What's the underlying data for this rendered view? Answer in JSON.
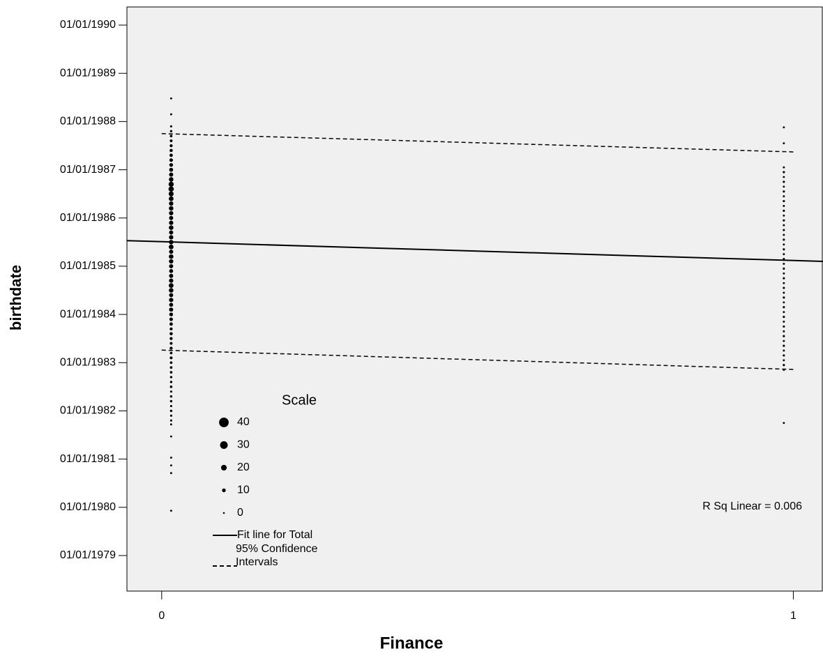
{
  "chart_data": {
    "type": "scatter",
    "x_label": "Finance",
    "y_label": "birthdate",
    "xlim": [
      -0.055,
      1.047
    ],
    "xticks": [
      0,
      1
    ],
    "ylim": [
      1978.263,
      1990.376
    ],
    "yticks": [
      {
        "value": 1990,
        "label": "01/01/1990"
      },
      {
        "value": 1989,
        "label": "01/01/1989"
      },
      {
        "value": 1988,
        "label": "01/01/1988"
      },
      {
        "value": 1987,
        "label": "01/01/1987"
      },
      {
        "value": 1986,
        "label": "01/01/1986"
      },
      {
        "value": 1985,
        "label": "01/01/1985"
      },
      {
        "value": 1984,
        "label": "01/01/1984"
      },
      {
        "value": 1983,
        "label": "01/01/1983"
      },
      {
        "value": 1982,
        "label": "01/01/1982"
      },
      {
        "value": 1981,
        "label": "01/01/1981"
      },
      {
        "value": 1980,
        "label": "01/01/1980"
      },
      {
        "value": 1979,
        "label": "01/01/1979"
      }
    ],
    "color": "#000000",
    "background": "#f0f0f0",
    "series": [
      {
        "x": 0.015,
        "y": [
          1979.93,
          1980.71,
          1980.87,
          1981.03,
          1981.47,
          1981.72,
          1981.8,
          1981.9,
          1982.0,
          1982.1,
          1982.2,
          1982.3,
          1982.4,
          1982.5,
          1982.6,
          1982.7,
          1982.8,
          1982.9,
          1983.0,
          1983.1,
          1983.2,
          1983.3,
          1983.4,
          1983.5,
          1983.6,
          1983.7,
          1983.8,
          1983.9,
          1984.0,
          1984.1,
          1984.2,
          1984.3,
          1984.4,
          1984.5,
          1984.6,
          1984.7,
          1984.8,
          1984.9,
          1985.0,
          1985.1,
          1985.2,
          1985.3,
          1985.4,
          1985.5,
          1985.6,
          1985.7,
          1985.8,
          1985.9,
          1986.0,
          1986.1,
          1986.2,
          1986.3,
          1986.4,
          1986.5,
          1986.6,
          1986.7,
          1986.8,
          1986.9,
          1987.0,
          1987.1,
          1987.2,
          1987.3,
          1987.4,
          1987.5,
          1987.6,
          1987.7,
          1987.8,
          1987.9,
          1988.15,
          1988.48
        ],
        "size": [
          1,
          1,
          1,
          1,
          1,
          1,
          2,
          2,
          3,
          2,
          3,
          3,
          2,
          4,
          3,
          3,
          4,
          4,
          4,
          5,
          4,
          6,
          5,
          6,
          7,
          6,
          8,
          9,
          10,
          12,
          11,
          13,
          12,
          14,
          15,
          13,
          12,
          11,
          12,
          13,
          14,
          12,
          15,
          14,
          13,
          12,
          14,
          13,
          12,
          13,
          14,
          13,
          15,
          16,
          18,
          17,
          14,
          12,
          11,
          10,
          9,
          8,
          7,
          6,
          5,
          4,
          3,
          2,
          1,
          1
        ]
      },
      {
        "x": 0.985,
        "y": [
          1981.75,
          1982.85,
          1982.95,
          1983.05,
          1983.15,
          1983.25,
          1983.35,
          1983.45,
          1983.55,
          1983.65,
          1983.75,
          1983.85,
          1983.95,
          1984.05,
          1984.15,
          1984.25,
          1984.35,
          1984.45,
          1984.55,
          1984.65,
          1984.75,
          1984.85,
          1984.95,
          1985.05,
          1985.15,
          1985.25,
          1985.35,
          1985.45,
          1985.55,
          1985.65,
          1985.75,
          1985.85,
          1985.95,
          1986.05,
          1986.15,
          1986.25,
          1986.35,
          1986.45,
          1986.55,
          1986.65,
          1986.75,
          1986.85,
          1986.95,
          1987.05,
          1987.55,
          1987.88
        ],
        "size": [
          1,
          1,
          2,
          1,
          2,
          1,
          2,
          1,
          2,
          1,
          2,
          1,
          2,
          1,
          2,
          1,
          2,
          1,
          2,
          1,
          2,
          1,
          2,
          1,
          2,
          1,
          2,
          1,
          2,
          1,
          2,
          1,
          2,
          1,
          2,
          1,
          2,
          1,
          2,
          1,
          2,
          1,
          2,
          1,
          1,
          1
        ]
      }
    ],
    "lines": [
      {
        "name": "Fit line for Total",
        "style": "solid",
        "x": [
          -0.055,
          1.047
        ],
        "y": [
          1985.53,
          1985.1
        ]
      },
      {
        "name": "95% Confidence Intervals",
        "style": "dashed",
        "x": [
          0,
          1
        ],
        "y": [
          1987.75,
          1987.37
        ]
      },
      {
        "style": "dashed",
        "x": [
          0,
          1
        ],
        "y": [
          1983.26,
          1982.86
        ]
      }
    ],
    "size_legend": {
      "title": "Scale",
      "values": [
        40,
        30,
        20,
        10,
        0
      ]
    },
    "annotation": "R Sq Linear = 0.006"
  }
}
